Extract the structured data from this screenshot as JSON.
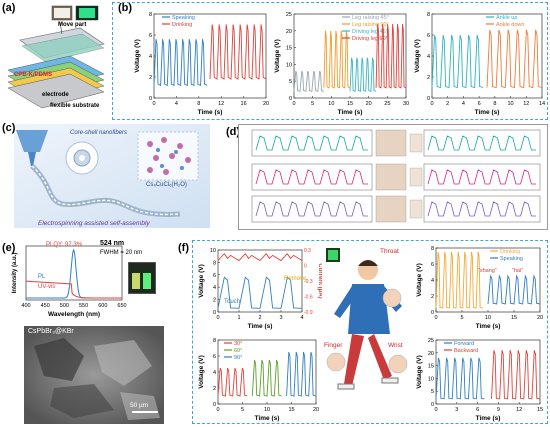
{
  "figure": {
    "labels": {
      "a": "(a)",
      "b": "(b)",
      "c": "(c)",
      "d": "(d)",
      "e": "(e)",
      "f": "(f)"
    },
    "panel_a": {
      "move_part": "Move part",
      "material": "CPB-K/PDMS",
      "electrode": "electrode",
      "substrate": "flexible substrate"
    },
    "panel_c": {
      "nanofibers": "Core-shell nanofibers",
      "formula": "Cs₄CuCl₆(H₂O)",
      "process": "Electrospinning assisted self-assembly"
    },
    "panel_e": {
      "plqy": "PLQY: 97.3%",
      "peak": "524 nm",
      "fwhm": "FWHM = 20 nm",
      "pl": "PL",
      "uvvis": "UV-vis",
      "xlabel": "Wavelength (nm)",
      "ylabel": "Intensity (a.u.)",
      "sem_label": "CsPbBr₃@KBr",
      "scale_bar": "50 μm"
    },
    "panel_f": {
      "throat": "Throat",
      "finger": "Finger",
      "wrist": "Wrist",
      "touch": "Touch",
      "remove": "Remove",
      "shang": "“shang”",
      "hai": "“hai”"
    }
  },
  "chart_data": [
    {
      "id": "b1",
      "type": "line",
      "xlabel": "Time (s)",
      "ylabel": "Voltage (V)",
      "xlim": [
        0,
        20
      ],
      "ylim": [
        0,
        8
      ],
      "xticks": [
        0,
        4,
        8,
        12,
        16,
        20
      ],
      "yticks": [
        0,
        2,
        4,
        6,
        8
      ],
      "series": [
        {
          "name": "Speaking",
          "color": "#2f7fc1",
          "x_range": [
            0,
            9.5
          ],
          "peaks": 8,
          "low": 1.2,
          "high": 5.6
        },
        {
          "name": "Drinking",
          "color": "#e0413a",
          "x_range": [
            10,
            20
          ],
          "peaks": 8,
          "low": 1.8,
          "high": 7.0
        }
      ]
    },
    {
      "id": "b2",
      "type": "line",
      "xlabel": "Time (s)",
      "ylabel": "Voltage (V)",
      "xlim": [
        0,
        30
      ],
      "ylim": [
        0,
        25
      ],
      "xticks": [
        0,
        5,
        10,
        15,
        20,
        25,
        30
      ],
      "yticks": [
        0,
        5,
        10,
        15,
        20,
        25
      ],
      "series": [
        {
          "name": "Leg raising 45°",
          "color": "#9aa4ad",
          "x_range": [
            0,
            8
          ],
          "peaks": 5,
          "low": 2,
          "high": 8
        },
        {
          "name": "Leg raising 90°",
          "color": "#f39b2b",
          "x_range": [
            8,
            15
          ],
          "peaks": 5,
          "low": 3,
          "high": 20
        },
        {
          "name": "Driving leg 45°",
          "color": "#3bb6c4",
          "x_range": [
            15,
            22
          ],
          "peaks": 5,
          "low": 2,
          "high": 12
        },
        {
          "name": "Driving leg 90°",
          "color": "#e0413a",
          "x_range": [
            22,
            30
          ],
          "peaks": 6,
          "low": 3,
          "high": 22
        }
      ]
    },
    {
      "id": "b3",
      "type": "line",
      "xlabel": "Time (s)",
      "ylabel": "Voltage (V)",
      "xlim": [
        0,
        14
      ],
      "ylim": [
        0,
        8
      ],
      "xticks": [
        0,
        2,
        4,
        6,
        8,
        10,
        12,
        14
      ],
      "yticks": [
        0,
        2,
        4,
        6,
        8
      ],
      "series": [
        {
          "name": "Ankle up",
          "color": "#2bb5c0",
          "x_range": [
            0,
            6.5
          ],
          "peaks": 6,
          "low": 1.0,
          "high": 6.0
        },
        {
          "name": "Ankle down",
          "color": "#f07b3a",
          "x_range": [
            7,
            14
          ],
          "peaks": 6,
          "low": 1.0,
          "high": 6.5
        }
      ]
    },
    {
      "id": "f1",
      "type": "line",
      "xlabel": "Time (s)",
      "ylabel": "Voltage (V)",
      "y2label": "Current (μA)",
      "xlim": [
        0,
        4
      ],
      "ylim": [
        0,
        10
      ],
      "xticks": [
        0,
        1,
        2,
        3,
        4
      ],
      "yticks": [
        0,
        2,
        4,
        6,
        8,
        10
      ],
      "y2ticks": [
        -0.9,
        -0.6,
        -0.3,
        0.0,
        0.3
      ],
      "series": [
        {
          "name": "Voltage",
          "color": "#2f7fc1",
          "peaks": 4,
          "low": 0.6,
          "high": 5.6
        },
        {
          "name": "Current",
          "color": "#e0413a",
          "peaks": 4,
          "low": 8.3,
          "high": 9.4
        }
      ]
    },
    {
      "id": "f2",
      "type": "line",
      "xlabel": "Time (s)",
      "ylabel": "Voltage (V)",
      "xlim": [
        0,
        20
      ],
      "ylim": [
        0,
        8
      ],
      "xticks": [
        0,
        5,
        10,
        15,
        20
      ],
      "yticks": [
        0,
        2,
        4,
        6,
        8
      ],
      "series": [
        {
          "name": "30°",
          "color": "#e0413a",
          "x_range": [
            0,
            6
          ],
          "peaks": 4,
          "low": 1,
          "high": 4.5
        },
        {
          "name": "60°",
          "color": "#5aa02c",
          "x_range": [
            7,
            13
          ],
          "peaks": 4,
          "low": 1,
          "high": 5.5
        },
        {
          "name": "90°",
          "color": "#2f7fc1",
          "x_range": [
            14,
            20
          ],
          "peaks": 4,
          "low": 1,
          "high": 6.5
        }
      ]
    },
    {
      "id": "f3",
      "type": "line",
      "xlabel": "Time (s)",
      "ylabel": "Voltage (V)",
      "xlim": [
        0,
        20
      ],
      "ylim": [
        0,
        8
      ],
      "xticks": [
        0,
        5,
        10,
        15,
        20
      ],
      "yticks": [
        0,
        2,
        4,
        6,
        8
      ],
      "series": [
        {
          "name": "Drinking",
          "color": "#f3a93a",
          "x_range": [
            0,
            9
          ],
          "peaks": 7,
          "low": 0.5,
          "high": 7.5
        },
        {
          "name": "Speaking",
          "color": "#2f7fc1",
          "x_range": [
            10,
            20
          ],
          "peaks": 6,
          "low": 1.0,
          "high": 4.5
        }
      ]
    },
    {
      "id": "f4",
      "type": "line",
      "xlabel": "Time (s)",
      "ylabel": "Voltage (V)",
      "xlim": [
        0,
        15
      ],
      "ylim": [
        0,
        25
      ],
      "xticks": [
        0,
        3,
        6,
        9,
        12,
        15
      ],
      "yticks": [
        0,
        5,
        10,
        15,
        20,
        25
      ],
      "series": [
        {
          "name": "Forward",
          "color": "#2f7fc1",
          "x_range": [
            0,
            7
          ],
          "peaks": 6,
          "low": 2,
          "high": 18
        },
        {
          "name": "Backward",
          "color": "#e0413a",
          "x_range": [
            8,
            15
          ],
          "peaks": 6,
          "low": 2,
          "high": 21
        }
      ]
    }
  ]
}
